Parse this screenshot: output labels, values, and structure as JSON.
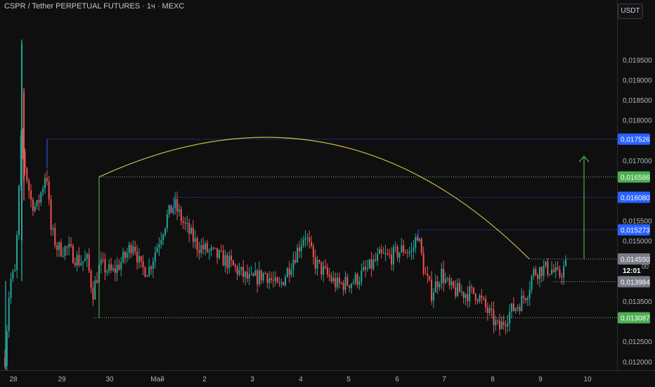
{
  "header": {
    "symbol": "CSPR / Tether PERPETUAL FUTURES · 1ч · MEXC"
  },
  "price_axis": {
    "currency": "USDT"
  },
  "colors": {
    "bg": "#0f0f10",
    "up": "#26a69a",
    "down": "#ef5350",
    "blue_label": "#2962ff",
    "green_label": "#4caf50",
    "grey_label": "#787b86",
    "arc": "#c9b84a"
  },
  "chart_data": {
    "type": "candlestick",
    "title": "",
    "y_ticks": [
      "0,019500",
      "0,019000",
      "0,018500",
      "0,018000",
      "0,017000",
      "0,015500",
      "0,015000",
      "0,013500",
      "0,012500",
      "0,012000"
    ],
    "x_ticks": [
      "28",
      "29",
      "30",
      "Май",
      "2",
      "3",
      "4",
      "5",
      "6",
      "7",
      "8",
      "9",
      "10"
    ],
    "price_labels": [
      {
        "text": "0,017526",
        "value": 0.017526,
        "style": "blue"
      },
      {
        "text": "0,016586",
        "value": 0.016586,
        "style": "green"
      },
      {
        "text": "0,016080",
        "value": 0.01608,
        "style": "blue"
      },
      {
        "text": "0,015273",
        "value": 0.015273,
        "style": "blue"
      },
      {
        "text": "0,014550",
        "value": 0.01455,
        "style": "grey"
      },
      {
        "text": "0,013984",
        "value": 0.013984,
        "style": "grey"
      },
      {
        "text": "0,013087",
        "value": 0.013087,
        "style": "green"
      }
    ],
    "countdown": "12:01",
    "countdown_tail": "00",
    "ylim": [
      0.0117,
      0.0198
    ]
  }
}
